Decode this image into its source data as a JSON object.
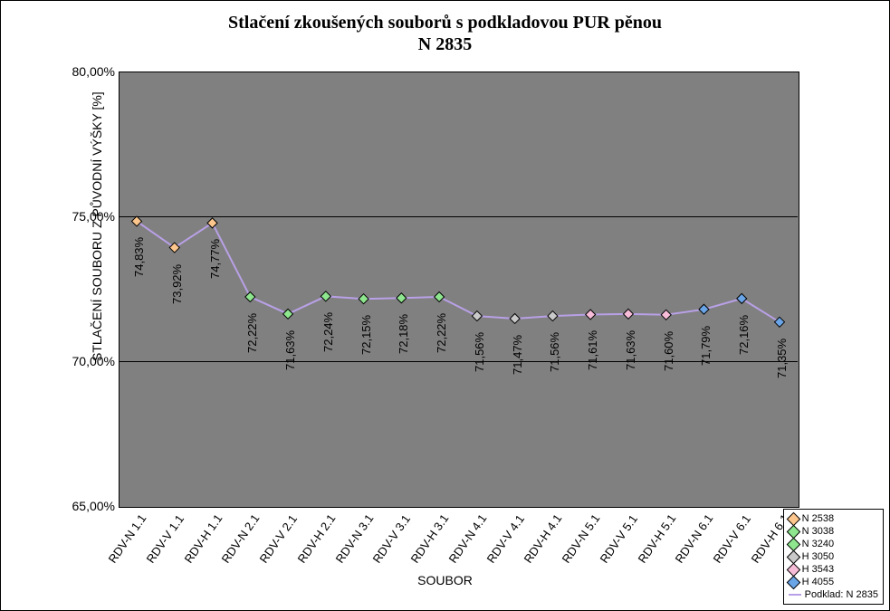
{
  "chart": {
    "type": "line",
    "title_line1": "Stlačení zkoušených souborů s podkladovou PUR pěnou",
    "title_line2": "N 2835",
    "title_fontsize": 20,
    "x_axis_label": "SOUBOR",
    "y_axis_label": "STLAČENÍ SOUBORU Z PŮVODNÍ VÝŠKY [%]",
    "label_fontsize": 14,
    "background_color": "#808080",
    "frame_color": "#000000",
    "grid_color": "#000000",
    "line_color": "#b8a0e6",
    "line_width": 2,
    "marker_shape": "diamond",
    "marker_size": 11,
    "marker_border_color": "#000000",
    "ylim": [
      65.0,
      80.0
    ],
    "ytick_step": 5.0,
    "yticks": [
      {
        "v": 65.0,
        "label": "65,00%"
      },
      {
        "v": 70.0,
        "label": "70,00%"
      },
      {
        "v": 75.0,
        "label": "75,00%"
      },
      {
        "v": 80.0,
        "label": "80,00%"
      }
    ],
    "categories": [
      "RDV-N 1.1",
      "RDV-V 1.1",
      "RDV-H 1.1",
      "RDV-N 2.1",
      "RDV-V 2.1",
      "RDV-H 2.1",
      "RDV-N 3.1",
      "RDV-V 3.1",
      "RDV-H 3.1",
      "RDV-N 4.1",
      "RDV-V 4.1",
      "RDV-H 4.1",
      "RDV-N 5.1",
      "RDV-V 5.1",
      "RDV-H 5.1",
      "RDV-N 6.1",
      "RDV-V 6.1",
      "RDV-H 6.1"
    ],
    "values": [
      74.83,
      73.92,
      74.77,
      72.22,
      71.63,
      72.24,
      72.15,
      72.18,
      72.22,
      71.56,
      71.47,
      71.56,
      71.61,
      71.63,
      71.6,
      71.79,
      72.16,
      71.35
    ],
    "value_labels": [
      "74,83%",
      "73,92%",
      "74,77%",
      "72,22%",
      "71,63%",
      "72,24%",
      "72,15%",
      "72,18%",
      "72,22%",
      "71,56%",
      "71,47%",
      "71,56%",
      "71,61%",
      "71,63%",
      "71,60%",
      "71,79%",
      "72,16%",
      "71,35%"
    ],
    "marker_colors": [
      "#fdc68c",
      "#fdc68c",
      "#fdc68c",
      "#8ee68e",
      "#8ee68e",
      "#8ee68e",
      "#8ee68e",
      "#8ee68e",
      "#8ee68e",
      "#c9c9c9",
      "#c9c9c9",
      "#c9c9c9",
      "#f7bdd8",
      "#f7bdd8",
      "#f7bdd8",
      "#6aa5e8",
      "#6aa5e8",
      "#6aa5e8"
    ],
    "legend_title": null,
    "legend_items": [
      {
        "label": "N 2538",
        "color": "#fdc68c",
        "type": "diamond"
      },
      {
        "label": "N 3038",
        "color": "#8ee68e",
        "type": "diamond"
      },
      {
        "label": "N 3240",
        "color": "#8ee68e",
        "type": "diamond"
      },
      {
        "label": "H 3050",
        "color": "#c9c9c9",
        "type": "diamond"
      },
      {
        "label": "H 3543",
        "color": "#f7bdd8",
        "type": "diamond"
      },
      {
        "label": "H 4055",
        "color": "#6aa5e8",
        "type": "diamond"
      },
      {
        "label": "Podklad: N 2835",
        "color": "#b8a0e6",
        "type": "line"
      }
    ]
  }
}
